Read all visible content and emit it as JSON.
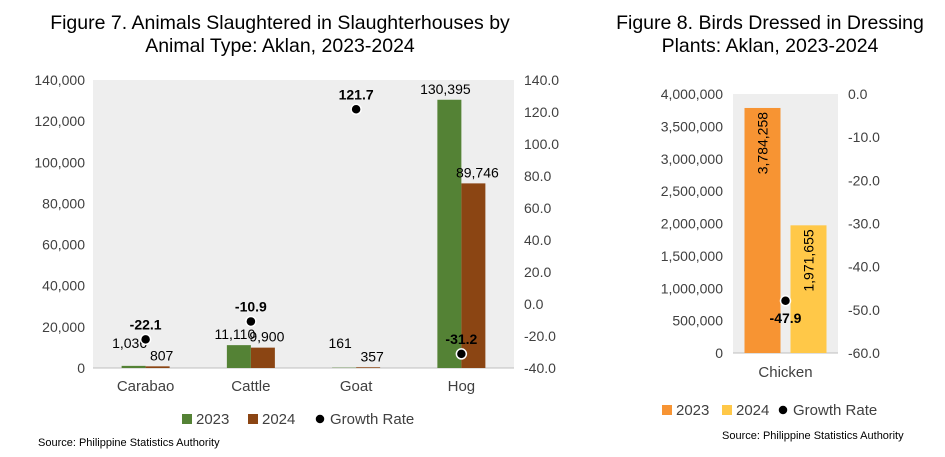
{
  "colors": {
    "c2023_fig7": "#548235",
    "c2024_fig7": "#8b4513",
    "c2023_fig8": "#f79433",
    "c2024_fig8": "#ffc848",
    "growth_marker": "#000000",
    "grid": "#e0e0e0",
    "plot_bg": "#eeeeee"
  },
  "figure7": {
    "title": "Figure 7. Animals Slaughtered in Slaughterhouses by Animal Type: Aklan, 2023-2024",
    "source": "Source: Philippine Statistics Authority",
    "legend": [
      "2023",
      "2024",
      "Growth Rate"
    ]
  },
  "figure8": {
    "title": "Figure 8. Birds Dressed in Dressing Plants: Aklan, 2023-2024",
    "source": "Source: Philippine Statistics Authority",
    "legend": [
      "2023",
      "2024",
      "Growth Rate"
    ]
  },
  "chart_data": [
    {
      "type": "bar",
      "title": "Figure 7. Animals Slaughtered in Slaughterhouses by Animal Type: Aklan, 2023-2024",
      "categories": [
        "Carabao",
        "Cattle",
        "Goat",
        "Hog"
      ],
      "series": [
        {
          "name": "2023",
          "values": [
            1036,
            11110,
            161,
            130395
          ],
          "labels": [
            "1,036",
            "11,110",
            "161",
            "130,395"
          ]
        },
        {
          "name": "2024",
          "values": [
            807,
            9900,
            357,
            89746
          ],
          "labels": [
            "807",
            "9,900",
            "357",
            "89,746"
          ]
        },
        {
          "name": "Growth Rate",
          "axis": "secondary",
          "values": [
            -22.1,
            -10.9,
            121.7,
            -31.2
          ],
          "labels": [
            "-22.1",
            "-10.9",
            "121.7",
            "-31.2"
          ]
        }
      ],
      "ylim": [
        0,
        140000
      ],
      "yticks": [
        "0",
        "20,000",
        "40,000",
        "60,000",
        "80,000",
        "100,000",
        "120,000",
        "140,000"
      ],
      "y2lim": [
        -40,
        140
      ],
      "y2ticks": [
        "-40.0",
        "-20.0",
        "0.0",
        "20.0",
        "40.0",
        "60.0",
        "80.0",
        "100.0",
        "120.0",
        "140.0"
      ],
      "legend_position": "bottom",
      "grid": false
    },
    {
      "type": "bar",
      "title": "Figure 8. Birds Dressed in Dressing Plants: Aklan, 2023-2024",
      "categories": [
        "Chicken"
      ],
      "series": [
        {
          "name": "2023",
          "values": [
            3784258
          ],
          "labels": [
            "3,784,258"
          ]
        },
        {
          "name": "2024",
          "values": [
            1971655
          ],
          "labels": [
            "1,971,655"
          ]
        },
        {
          "name": "Growth Rate",
          "axis": "secondary",
          "values": [
            -47.9
          ],
          "labels": [
            "-47.9"
          ]
        }
      ],
      "ylim": [
        0,
        4000000
      ],
      "yticks": [
        "0",
        "500,000",
        "1,000,000",
        "1,500,000",
        "2,000,000",
        "2,500,000",
        "3,000,000",
        "3,500,000",
        "4,000,000"
      ],
      "y2lim": [
        -60,
        0
      ],
      "y2ticks": [
        "-60.0",
        "-50.0",
        "-40.0",
        "-30.0",
        "-20.0",
        "-10.0",
        "0.0"
      ],
      "legend_position": "bottom",
      "grid": false
    }
  ]
}
